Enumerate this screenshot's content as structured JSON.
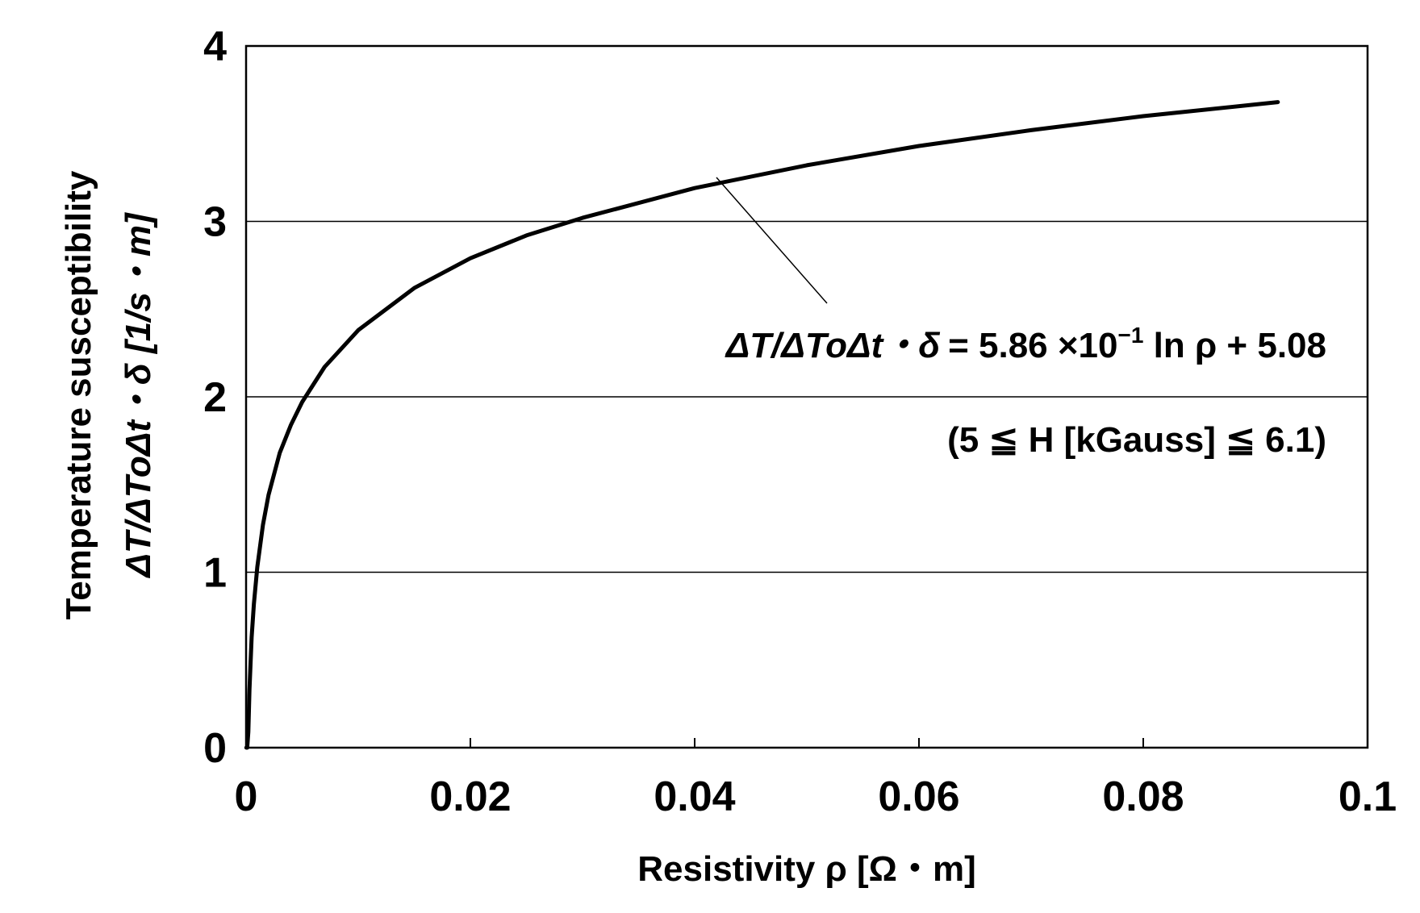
{
  "chart_data": {
    "type": "line",
    "title": "",
    "xlabel": "Resistivity ρ [Ω・m]",
    "ylabel_line1": "Temperature susceptibility",
    "ylabel_line2": "ΔT/ΔToΔt・δ [1/s・m]",
    "xlim": [
      0,
      0.1
    ],
    "ylim": [
      0,
      4
    ],
    "x_ticks": [
      "0",
      "0.02",
      "0.04",
      "0.06",
      "0.08",
      "0.1"
    ],
    "y_ticks": [
      "0",
      "1",
      "2",
      "3",
      "4"
    ],
    "grid": "horizontal",
    "series": [
      {
        "x": [
          2e-05,
          5e-05,
          0.0001,
          0.0002,
          0.0003,
          0.0005,
          0.0007,
          0.001,
          0.0015,
          0.002,
          0.003,
          0.004,
          0.005,
          0.007,
          0.01,
          0.015,
          0.02,
          0.025,
          0.03,
          0.04,
          0.05,
          0.06,
          0.07,
          0.08,
          0.092
        ],
        "y": [
          0.0,
          0.0,
          0.0,
          0.09,
          0.33,
          0.63,
          0.82,
          1.03,
          1.27,
          1.44,
          1.68,
          1.84,
          1.97,
          2.17,
          2.38,
          2.62,
          2.79,
          2.92,
          3.02,
          3.19,
          3.32,
          3.43,
          3.52,
          3.6,
          3.68
        ]
      }
    ],
    "annotations": {
      "equation": {
        "lhs": "ΔT/ΔToΔt・δ",
        "rhs": "= 5.86 ×10",
        "exponent": "−1",
        "tail": " ln ρ + 5.08"
      },
      "condition": "(5 ≦ H [kGauss] ≦ 6.1)"
    }
  }
}
